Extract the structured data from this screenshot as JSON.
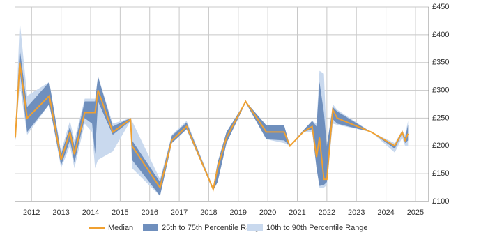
{
  "chart_data": {
    "type": "range-line",
    "x": [
      2011.45,
      2011.6,
      2011.85,
      2012.6,
      2013.0,
      2013.3,
      2013.45,
      2013.8,
      2014.05,
      2014.15,
      2014.25,
      2014.75,
      2015.35,
      2015.4,
      2016.35,
      2016.75,
      2017.25,
      2018.15,
      2018.3,
      2018.6,
      2019.25,
      2019.95,
      2020.55,
      2020.75,
      2021.2,
      2021.5,
      2021.65,
      2021.75,
      2021.9,
      2022.0,
      2022.2,
      2022.35,
      2023.5,
      2024.3,
      2024.55,
      2024.65,
      2024.75
    ],
    "ranges": [
      {
        "name": "10th to 90th Percentile Range",
        "color": "#c9d9ee",
        "low": [
          210,
          310,
          220,
          275,
          160,
          200,
          160,
          240,
          225,
          160,
          175,
          190,
          245,
          160,
          110,
          205,
          230,
          120,
          135,
          205,
          278,
          212,
          205,
          200,
          225,
          225,
          160,
          125,
          125,
          130,
          240,
          238,
          225,
          188,
          215,
          200,
          200
        ],
        "high": [
          225,
          425,
          290,
          315,
          190,
          245,
          210,
          285,
          285,
          285,
          325,
          240,
          250,
          245,
          140,
          220,
          245,
          125,
          170,
          225,
          280,
          237,
          237,
          200,
          228,
          245,
          240,
          335,
          330,
          200,
          275,
          265,
          225,
          205,
          228,
          220,
          245
        ]
      },
      {
        "name": "25th to 75th Percentile Range",
        "color": "#6f8fbd",
        "low": [
          210,
          335,
          225,
          275,
          165,
          210,
          170,
          250,
          240,
          185,
          280,
          220,
          245,
          175,
          110,
          205,
          230,
          120,
          135,
          205,
          278,
          212,
          210,
          200,
          225,
          230,
          160,
          128,
          130,
          135,
          248,
          240,
          225,
          195,
          222,
          205,
          210
        ],
        "high": [
          225,
          375,
          270,
          315,
          185,
          235,
          200,
          280,
          280,
          280,
          325,
          235,
          250,
          210,
          135,
          218,
          242,
          125,
          170,
          225,
          280,
          237,
          237,
          200,
          228,
          245,
          235,
          315,
          260,
          200,
          270,
          262,
          225,
          200,
          225,
          215,
          238
        ]
      }
    ],
    "series": [
      {
        "name": "Median",
        "color": "#f0a030",
        "values": [
          215,
          350,
          250,
          290,
          175,
          225,
          185,
          260,
          260,
          260,
          300,
          225,
          248,
          200,
          125,
          210,
          235,
          122,
          160,
          215,
          280,
          225,
          225,
          200,
          225,
          235,
          180,
          215,
          140,
          140,
          265,
          250,
          225,
          200,
          225,
          210,
          222
        ]
      }
    ],
    "xlim": [
      2011.45,
      2025.45
    ],
    "xticks": [
      2012,
      2013,
      2014,
      2015,
      2016,
      2017,
      2018,
      2019,
      2020,
      2021,
      2022,
      2023,
      2024,
      2025
    ],
    "ylim": [
      100,
      450
    ],
    "yticks": [
      {
        "value": 100,
        "label": "£100"
      },
      {
        "value": 150,
        "label": "£150"
      },
      {
        "value": 200,
        "label": "£200"
      },
      {
        "value": 250,
        "label": "£250"
      },
      {
        "value": 300,
        "label": "£300"
      },
      {
        "value": 350,
        "label": "£350"
      },
      {
        "value": 400,
        "label": "£400"
      },
      {
        "value": 450,
        "label": "£450"
      }
    ],
    "grid": true,
    "legend": "bottom"
  }
}
